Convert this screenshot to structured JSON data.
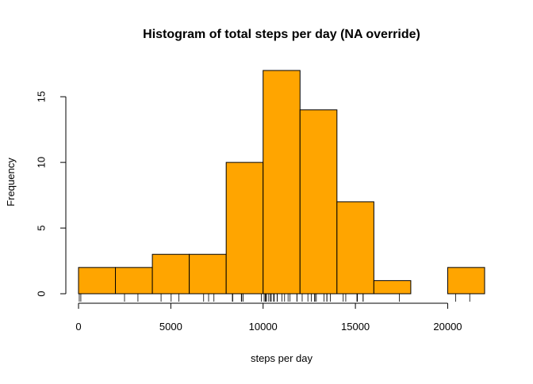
{
  "chart_data": {
    "type": "bar",
    "title": "Histogram of total steps per day (NA override)",
    "xlabel": "steps per day",
    "ylabel": "Frequency",
    "bins": [
      {
        "start": 0,
        "end": 2000,
        "count": 2
      },
      {
        "start": 2000,
        "end": 4000,
        "count": 2
      },
      {
        "start": 4000,
        "end": 6000,
        "count": 3
      },
      {
        "start": 6000,
        "end": 8000,
        "count": 3
      },
      {
        "start": 8000,
        "end": 10000,
        "count": 10
      },
      {
        "start": 10000,
        "end": 12000,
        "count": 17
      },
      {
        "start": 12000,
        "end": 14000,
        "count": 14
      },
      {
        "start": 14000,
        "end": 16000,
        "count": 7
      },
      {
        "start": 16000,
        "end": 18000,
        "count": 1
      },
      {
        "start": 18000,
        "end": 20000,
        "count": 0
      },
      {
        "start": 20000,
        "end": 22000,
        "count": 2
      }
    ],
    "xlim": [
      0,
      22000
    ],
    "ylim": [
      0,
      17
    ],
    "x_ticks": [
      0,
      5000,
      10000,
      15000,
      20000
    ],
    "x_tick_labels": [
      "0",
      "5000",
      "10000",
      "15000",
      "20000"
    ],
    "y_ticks": [
      0,
      5,
      10,
      15
    ],
    "y_tick_labels": [
      "0",
      "5",
      "10",
      "15"
    ],
    "rug": [
      41,
      126,
      2492,
      3219,
      4472,
      5018,
      5441,
      6778,
      7047,
      7336,
      8334,
      8355,
      8821,
      8841,
      8918,
      9900,
      10056,
      10119,
      10139,
      10183,
      10304,
      10395,
      10439,
      10571,
      10600,
      10765,
      10766,
      11015,
      11162,
      11352,
      11458,
      11829,
      11834,
      12116,
      12426,
      12608,
      12787,
      12811,
      12883,
      13294,
      13452,
      13460,
      13646,
      14339,
      14478,
      15084,
      15098,
      15110,
      15414,
      15420,
      17382,
      20427,
      21194
    ],
    "bar_color": "#FFA500",
    "grid": false,
    "legend": "none"
  }
}
